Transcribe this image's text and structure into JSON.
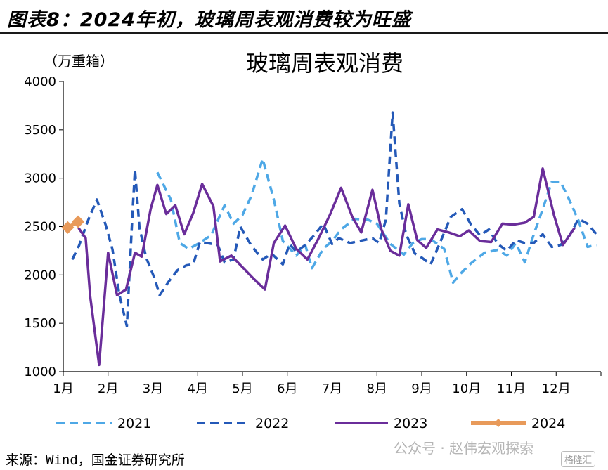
{
  "figure_title": "图表8：2024年初，玻璃周表观消费较为旺盛",
  "source": "来源：Wind，国金证券研究所",
  "watermark": "公众号 · 赵伟宏观探索",
  "watermark_logo": "格隆汇",
  "colors": {
    "2021": "#4ea8e6",
    "2022": "#2459b8",
    "2023": "#6a2d9a",
    "2024": "#e89a5a"
  },
  "chart_data": {
    "type": "line",
    "title": "玻璃周表观消费",
    "ylabel": "（万重箱）",
    "xlabel": "",
    "ylim": [
      1000,
      4000
    ],
    "yticks": [
      "1000",
      "1500",
      "2000",
      "2500",
      "3000",
      "3500",
      "4000"
    ],
    "xlim": [
      1,
      13
    ],
    "xticks": [
      "1月",
      "2月",
      "3月",
      "4月",
      "5月",
      "6月",
      "7月",
      "8月",
      "9月",
      "10月",
      "11月",
      "12月"
    ],
    "legend_position": "bottom",
    "grid": false,
    "series": [
      {
        "name": "2021",
        "style": "dashed",
        "points": [
          [
            3.1,
            3060
          ],
          [
            3.4,
            2780
          ],
          [
            3.6,
            2330
          ],
          [
            3.8,
            2270
          ],
          [
            4.0,
            2320
          ],
          [
            4.3,
            2410
          ],
          [
            4.6,
            2720
          ],
          [
            4.8,
            2530
          ],
          [
            5.0,
            2620
          ],
          [
            5.2,
            2820
          ],
          [
            5.45,
            3200
          ],
          [
            5.7,
            2780
          ],
          [
            5.9,
            2350
          ],
          [
            6.2,
            2200
          ],
          [
            6.4,
            2310
          ],
          [
            6.55,
            2070
          ],
          [
            6.8,
            2270
          ],
          [
            7.0,
            2350
          ],
          [
            7.2,
            2470
          ],
          [
            7.5,
            2580
          ],
          [
            7.8,
            2570
          ],
          [
            8.0,
            2530
          ],
          [
            8.3,
            2320
          ],
          [
            8.6,
            2210
          ],
          [
            8.8,
            2330
          ],
          [
            9.0,
            2370
          ],
          [
            9.2,
            2370
          ],
          [
            9.5,
            2270
          ],
          [
            9.7,
            1920
          ],
          [
            9.9,
            2030
          ],
          [
            10.1,
            2120
          ],
          [
            10.4,
            2230
          ],
          [
            10.7,
            2260
          ],
          [
            10.9,
            2200
          ],
          [
            11.1,
            2330
          ],
          [
            11.3,
            2130
          ],
          [
            11.5,
            2420
          ],
          [
            11.7,
            2680
          ],
          [
            11.9,
            2960
          ],
          [
            12.1,
            2960
          ],
          [
            12.3,
            2770
          ],
          [
            12.5,
            2560
          ],
          [
            12.7,
            2290
          ],
          [
            12.9,
            2310
          ]
        ]
      },
      {
        "name": "2022",
        "style": "dashed",
        "points": [
          [
            1.2,
            2160
          ],
          [
            1.35,
            2300
          ],
          [
            1.55,
            2560
          ],
          [
            1.75,
            2780
          ],
          [
            1.95,
            2510
          ],
          [
            2.1,
            2260
          ],
          [
            2.25,
            1800
          ],
          [
            2.42,
            1470
          ],
          [
            2.55,
            2680
          ],
          [
            2.6,
            3090
          ],
          [
            2.7,
            2490
          ],
          [
            2.85,
            2180
          ],
          [
            3.05,
            1950
          ],
          [
            3.15,
            1790
          ],
          [
            3.35,
            1930
          ],
          [
            3.55,
            2050
          ],
          [
            3.75,
            2100
          ],
          [
            3.9,
            2110
          ],
          [
            4.05,
            2340
          ],
          [
            4.2,
            2330
          ],
          [
            4.45,
            2310
          ],
          [
            4.6,
            2130
          ],
          [
            4.8,
            2160
          ],
          [
            4.95,
            2500
          ],
          [
            5.2,
            2300
          ],
          [
            5.45,
            2160
          ],
          [
            5.65,
            2220
          ],
          [
            5.9,
            2110
          ],
          [
            6.05,
            2320
          ],
          [
            6.2,
            2240
          ],
          [
            6.4,
            2310
          ],
          [
            6.6,
            2410
          ],
          [
            6.8,
            2530
          ],
          [
            7.0,
            2320
          ],
          [
            7.15,
            2380
          ],
          [
            7.4,
            2330
          ],
          [
            7.7,
            2360
          ],
          [
            7.9,
            2380
          ],
          [
            8.05,
            2330
          ],
          [
            8.2,
            2570
          ],
          [
            8.35,
            3680
          ],
          [
            8.5,
            2740
          ],
          [
            8.65,
            2420
          ],
          [
            8.85,
            2220
          ],
          [
            9.0,
            2180
          ],
          [
            9.2,
            2110
          ],
          [
            9.35,
            2270
          ],
          [
            9.65,
            2600
          ],
          [
            9.9,
            2680
          ],
          [
            10.1,
            2520
          ],
          [
            10.3,
            2410
          ],
          [
            10.5,
            2470
          ],
          [
            10.7,
            2320
          ],
          [
            10.9,
            2250
          ],
          [
            11.1,
            2360
          ],
          [
            11.3,
            2330
          ],
          [
            11.5,
            2330
          ],
          [
            11.7,
            2420
          ],
          [
            11.9,
            2290
          ],
          [
            12.1,
            2310
          ],
          [
            12.3,
            2410
          ],
          [
            12.5,
            2580
          ],
          [
            12.7,
            2530
          ],
          [
            12.9,
            2420
          ]
        ]
      },
      {
        "name": "2023",
        "style": "solid",
        "points": [
          [
            1.35,
            2480
          ],
          [
            1.5,
            2380
          ],
          [
            1.6,
            1780
          ],
          [
            1.8,
            1070
          ],
          [
            2.0,
            2230
          ],
          [
            2.2,
            1790
          ],
          [
            2.4,
            1850
          ],
          [
            2.6,
            2230
          ],
          [
            2.75,
            2190
          ],
          [
            2.95,
            2680
          ],
          [
            3.1,
            2930
          ],
          [
            3.3,
            2630
          ],
          [
            3.5,
            2720
          ],
          [
            3.7,
            2420
          ],
          [
            3.9,
            2640
          ],
          [
            4.1,
            2940
          ],
          [
            4.35,
            2710
          ],
          [
            4.5,
            2140
          ],
          [
            4.75,
            2200
          ],
          [
            5.0,
            2080
          ],
          [
            5.25,
            1960
          ],
          [
            5.5,
            1850
          ],
          [
            5.7,
            2330
          ],
          [
            5.95,
            2510
          ],
          [
            6.2,
            2270
          ],
          [
            6.45,
            2160
          ],
          [
            6.7,
            2380
          ],
          [
            6.95,
            2620
          ],
          [
            7.2,
            2900
          ],
          [
            7.45,
            2600
          ],
          [
            7.65,
            2440
          ],
          [
            7.9,
            2880
          ],
          [
            8.1,
            2470
          ],
          [
            8.3,
            2250
          ],
          [
            8.5,
            2200
          ],
          [
            8.7,
            2730
          ],
          [
            8.9,
            2360
          ],
          [
            9.1,
            2280
          ],
          [
            9.35,
            2470
          ],
          [
            9.6,
            2440
          ],
          [
            9.85,
            2400
          ],
          [
            10.05,
            2460
          ],
          [
            10.3,
            2350
          ],
          [
            10.55,
            2340
          ],
          [
            10.8,
            2530
          ],
          [
            11.05,
            2520
          ],
          [
            11.3,
            2540
          ],
          [
            11.5,
            2600
          ],
          [
            11.7,
            3100
          ],
          [
            11.95,
            2620
          ],
          [
            12.15,
            2310
          ],
          [
            12.4,
            2480
          ]
        ]
      },
      {
        "name": "2024",
        "style": "solid-marker",
        "points": [
          [
            1.1,
            2490
          ],
          [
            1.33,
            2550
          ]
        ]
      }
    ]
  }
}
